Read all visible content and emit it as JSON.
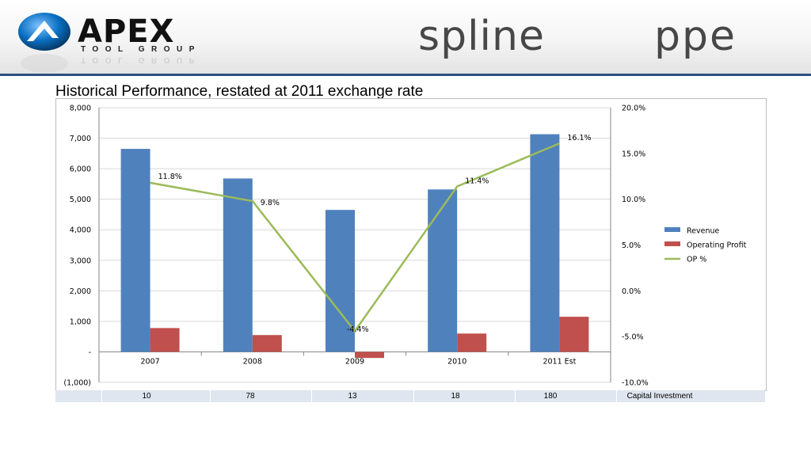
{
  "header": {
    "apex_logo_text": "APEX",
    "apex_sub_text": "TOOL GROUP",
    "spline_logo_text": "spline",
    "ppe_logo_text": "ppe"
  },
  "title": "Historical Performance, restated at 2011 exchange rate",
  "colors": {
    "revenue": "#4f81bd",
    "operating_profit": "#c0504d",
    "op_pct": "#9bbb59",
    "header_rule": "#2a4f86"
  },
  "chart_data": {
    "type": "bar",
    "categories": [
      "2007",
      "2008",
      "2009",
      "2010",
      "2011 Est"
    ],
    "series": [
      {
        "name": "Revenue",
        "type": "bar",
        "axis": "left",
        "values": [
          6650,
          5680,
          4650,
          5320,
          7130
        ]
      },
      {
        "name": "Operating Profit",
        "type": "bar",
        "axis": "left",
        "values": [
          780,
          550,
          -200,
          600,
          1150
        ]
      },
      {
        "name": "OP %",
        "type": "line",
        "axis": "right",
        "values": [
          11.8,
          9.8,
          -4.4,
          11.4,
          16.1
        ],
        "labels": [
          "11.8%",
          "9.8%",
          "-4.4%",
          "11.4%",
          "16.1%"
        ]
      }
    ],
    "ylim": [
      -1000,
      8000
    ],
    "y_ticks": [
      -1000,
      0,
      1000,
      2000,
      3000,
      4000,
      5000,
      6000,
      7000,
      8000
    ],
    "y_tick_labels": [
      "(1,000)",
      "-",
      "1,000",
      "2,000",
      "3,000",
      "4,000",
      "5,000",
      "6,000",
      "7,000",
      "8,000"
    ],
    "y2lim": [
      -10,
      20
    ],
    "y2_ticks": [
      -10,
      -5,
      0,
      5,
      10,
      15,
      20
    ],
    "y2_tick_labels": [
      "-10.0%",
      "-5.0%",
      "0.0%",
      "5.0%",
      "10.0%",
      "15.0%",
      "20.0%"
    ],
    "grid": true,
    "legend": "right"
  },
  "capital_investment": {
    "values": [
      "10",
      "78",
      "13",
      "18",
      "180"
    ],
    "label": "Capital Investment"
  }
}
